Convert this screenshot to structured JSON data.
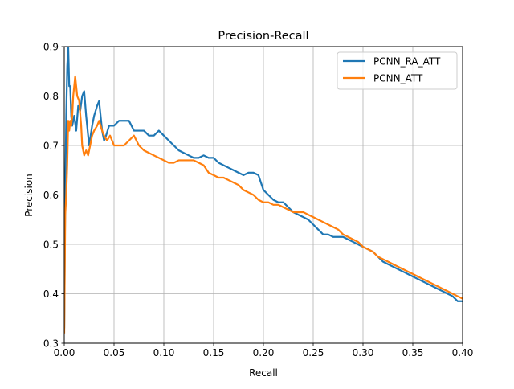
{
  "chart_data": {
    "type": "line",
    "title": "Precision-Recall",
    "xlabel": "Recall",
    "ylabel": "Precision",
    "xlim": [
      0.0,
      0.4
    ],
    "ylim": [
      0.3,
      0.9
    ],
    "xticks": [
      0.0,
      0.05,
      0.1,
      0.15,
      0.2,
      0.25,
      0.3,
      0.35,
      0.4
    ],
    "xtick_labels": [
      "0.00",
      "0.05",
      "0.10",
      "0.15",
      "0.20",
      "0.25",
      "0.30",
      "0.35",
      "0.40"
    ],
    "yticks": [
      0.3,
      0.4,
      0.5,
      0.6,
      0.7,
      0.8,
      0.9
    ],
    "ytick_labels": [
      "0.3",
      "0.4",
      "0.5",
      "0.6",
      "0.7",
      "0.8",
      "0.9"
    ],
    "grid": true,
    "legend_position": "top-right",
    "series": [
      {
        "name": "PCNN_RA_ATT",
        "color": "#1f77b4",
        "points": [
          [
            0.0,
            0.33
          ],
          [
            0.001,
            0.6
          ],
          [
            0.002,
            0.76
          ],
          [
            0.003,
            0.86
          ],
          [
            0.004,
            0.9
          ],
          [
            0.005,
            0.82
          ],
          [
            0.006,
            0.82
          ],
          [
            0.007,
            0.76
          ],
          [
            0.008,
            0.74
          ],
          [
            0.01,
            0.76
          ],
          [
            0.012,
            0.73
          ],
          [
            0.014,
            0.78
          ],
          [
            0.016,
            0.77
          ],
          [
            0.018,
            0.8
          ],
          [
            0.02,
            0.81
          ],
          [
            0.022,
            0.76
          ],
          [
            0.025,
            0.7
          ],
          [
            0.028,
            0.74
          ],
          [
            0.03,
            0.76
          ],
          [
            0.033,
            0.78
          ],
          [
            0.035,
            0.79
          ],
          [
            0.038,
            0.73
          ],
          [
            0.04,
            0.71
          ],
          [
            0.042,
            0.72
          ],
          [
            0.045,
            0.74
          ],
          [
            0.05,
            0.74
          ],
          [
            0.055,
            0.75
          ],
          [
            0.06,
            0.75
          ],
          [
            0.065,
            0.75
          ],
          [
            0.07,
            0.73
          ],
          [
            0.075,
            0.73
          ],
          [
            0.08,
            0.73
          ],
          [
            0.085,
            0.72
          ],
          [
            0.09,
            0.72
          ],
          [
            0.095,
            0.73
          ],
          [
            0.1,
            0.72
          ],
          [
            0.105,
            0.71
          ],
          [
            0.11,
            0.7
          ],
          [
            0.115,
            0.69
          ],
          [
            0.12,
            0.685
          ],
          [
            0.125,
            0.68
          ],
          [
            0.13,
            0.675
          ],
          [
            0.135,
            0.675
          ],
          [
            0.14,
            0.68
          ],
          [
            0.145,
            0.675
          ],
          [
            0.15,
            0.675
          ],
          [
            0.155,
            0.665
          ],
          [
            0.16,
            0.66
          ],
          [
            0.165,
            0.655
          ],
          [
            0.17,
            0.65
          ],
          [
            0.175,
            0.645
          ],
          [
            0.18,
            0.64
          ],
          [
            0.185,
            0.645
          ],
          [
            0.19,
            0.645
          ],
          [
            0.195,
            0.64
          ],
          [
            0.2,
            0.61
          ],
          [
            0.205,
            0.6
          ],
          [
            0.21,
            0.59
          ],
          [
            0.215,
            0.585
          ],
          [
            0.22,
            0.585
          ],
          [
            0.225,
            0.575
          ],
          [
            0.23,
            0.565
          ],
          [
            0.235,
            0.56
          ],
          [
            0.24,
            0.555
          ],
          [
            0.245,
            0.55
          ],
          [
            0.25,
            0.54
          ],
          [
            0.255,
            0.53
          ],
          [
            0.26,
            0.52
          ],
          [
            0.265,
            0.52
          ],
          [
            0.27,
            0.515
          ],
          [
            0.275,
            0.515
          ],
          [
            0.28,
            0.515
          ],
          [
            0.285,
            0.51
          ],
          [
            0.29,
            0.505
          ],
          [
            0.295,
            0.5
          ],
          [
            0.3,
            0.495
          ],
          [
            0.305,
            0.49
          ],
          [
            0.31,
            0.485
          ],
          [
            0.315,
            0.475
          ],
          [
            0.32,
            0.465
          ],
          [
            0.325,
            0.46
          ],
          [
            0.33,
            0.455
          ],
          [
            0.335,
            0.45
          ],
          [
            0.34,
            0.445
          ],
          [
            0.345,
            0.44
          ],
          [
            0.35,
            0.435
          ],
          [
            0.355,
            0.43
          ],
          [
            0.36,
            0.425
          ],
          [
            0.365,
            0.42
          ],
          [
            0.37,
            0.415
          ],
          [
            0.375,
            0.41
          ],
          [
            0.38,
            0.405
          ],
          [
            0.385,
            0.4
          ],
          [
            0.39,
            0.395
          ],
          [
            0.395,
            0.385
          ],
          [
            0.4,
            0.385
          ]
        ]
      },
      {
        "name": "PCNN_ATT",
        "color": "#ff7f0e",
        "points": [
          [
            0.0,
            0.32
          ],
          [
            0.001,
            0.56
          ],
          [
            0.002,
            0.6
          ],
          [
            0.003,
            0.66
          ],
          [
            0.004,
            0.75
          ],
          [
            0.005,
            0.73
          ],
          [
            0.006,
            0.75
          ],
          [
            0.007,
            0.74
          ],
          [
            0.008,
            0.76
          ],
          [
            0.009,
            0.8
          ],
          [
            0.01,
            0.82
          ],
          [
            0.011,
            0.84
          ],
          [
            0.012,
            0.82
          ],
          [
            0.013,
            0.8
          ],
          [
            0.015,
            0.79
          ],
          [
            0.017,
            0.74
          ],
          [
            0.018,
            0.7
          ],
          [
            0.02,
            0.68
          ],
          [
            0.022,
            0.69
          ],
          [
            0.024,
            0.68
          ],
          [
            0.026,
            0.7
          ],
          [
            0.028,
            0.72
          ],
          [
            0.03,
            0.73
          ],
          [
            0.033,
            0.74
          ],
          [
            0.035,
            0.75
          ],
          [
            0.038,
            0.73
          ],
          [
            0.04,
            0.72
          ],
          [
            0.043,
            0.71
          ],
          [
            0.046,
            0.72
          ],
          [
            0.05,
            0.7
          ],
          [
            0.055,
            0.7
          ],
          [
            0.06,
            0.7
          ],
          [
            0.065,
            0.71
          ],
          [
            0.07,
            0.72
          ],
          [
            0.075,
            0.7
          ],
          [
            0.08,
            0.69
          ],
          [
            0.085,
            0.685
          ],
          [
            0.09,
            0.68
          ],
          [
            0.095,
            0.675
          ],
          [
            0.1,
            0.67
          ],
          [
            0.105,
            0.665
          ],
          [
            0.11,
            0.665
          ],
          [
            0.115,
            0.67
          ],
          [
            0.12,
            0.67
          ],
          [
            0.125,
            0.67
          ],
          [
            0.13,
            0.67
          ],
          [
            0.135,
            0.665
          ],
          [
            0.14,
            0.66
          ],
          [
            0.145,
            0.645
          ],
          [
            0.15,
            0.64
          ],
          [
            0.155,
            0.635
          ],
          [
            0.16,
            0.635
          ],
          [
            0.165,
            0.63
          ],
          [
            0.17,
            0.625
          ],
          [
            0.175,
            0.62
          ],
          [
            0.18,
            0.61
          ],
          [
            0.185,
            0.605
          ],
          [
            0.19,
            0.6
          ],
          [
            0.195,
            0.59
          ],
          [
            0.2,
            0.585
          ],
          [
            0.205,
            0.585
          ],
          [
            0.21,
            0.58
          ],
          [
            0.215,
            0.58
          ],
          [
            0.22,
            0.575
          ],
          [
            0.225,
            0.57
          ],
          [
            0.23,
            0.565
          ],
          [
            0.235,
            0.565
          ],
          [
            0.24,
            0.565
          ],
          [
            0.245,
            0.56
          ],
          [
            0.25,
            0.555
          ],
          [
            0.255,
            0.55
          ],
          [
            0.26,
            0.545
          ],
          [
            0.265,
            0.54
          ],
          [
            0.27,
            0.535
          ],
          [
            0.275,
            0.53
          ],
          [
            0.28,
            0.52
          ],
          [
            0.285,
            0.515
          ],
          [
            0.29,
            0.51
          ],
          [
            0.295,
            0.505
          ],
          [
            0.3,
            0.495
          ],
          [
            0.305,
            0.49
          ],
          [
            0.31,
            0.485
          ],
          [
            0.315,
            0.475
          ],
          [
            0.32,
            0.47
          ],
          [
            0.325,
            0.465
          ],
          [
            0.33,
            0.46
          ],
          [
            0.335,
            0.455
          ],
          [
            0.34,
            0.45
          ],
          [
            0.345,
            0.445
          ],
          [
            0.35,
            0.44
          ],
          [
            0.355,
            0.435
          ],
          [
            0.36,
            0.43
          ],
          [
            0.365,
            0.425
          ],
          [
            0.37,
            0.42
          ],
          [
            0.375,
            0.415
          ],
          [
            0.38,
            0.41
          ],
          [
            0.385,
            0.405
          ],
          [
            0.39,
            0.4
          ],
          [
            0.395,
            0.395
          ],
          [
            0.4,
            0.39
          ]
        ]
      }
    ]
  }
}
